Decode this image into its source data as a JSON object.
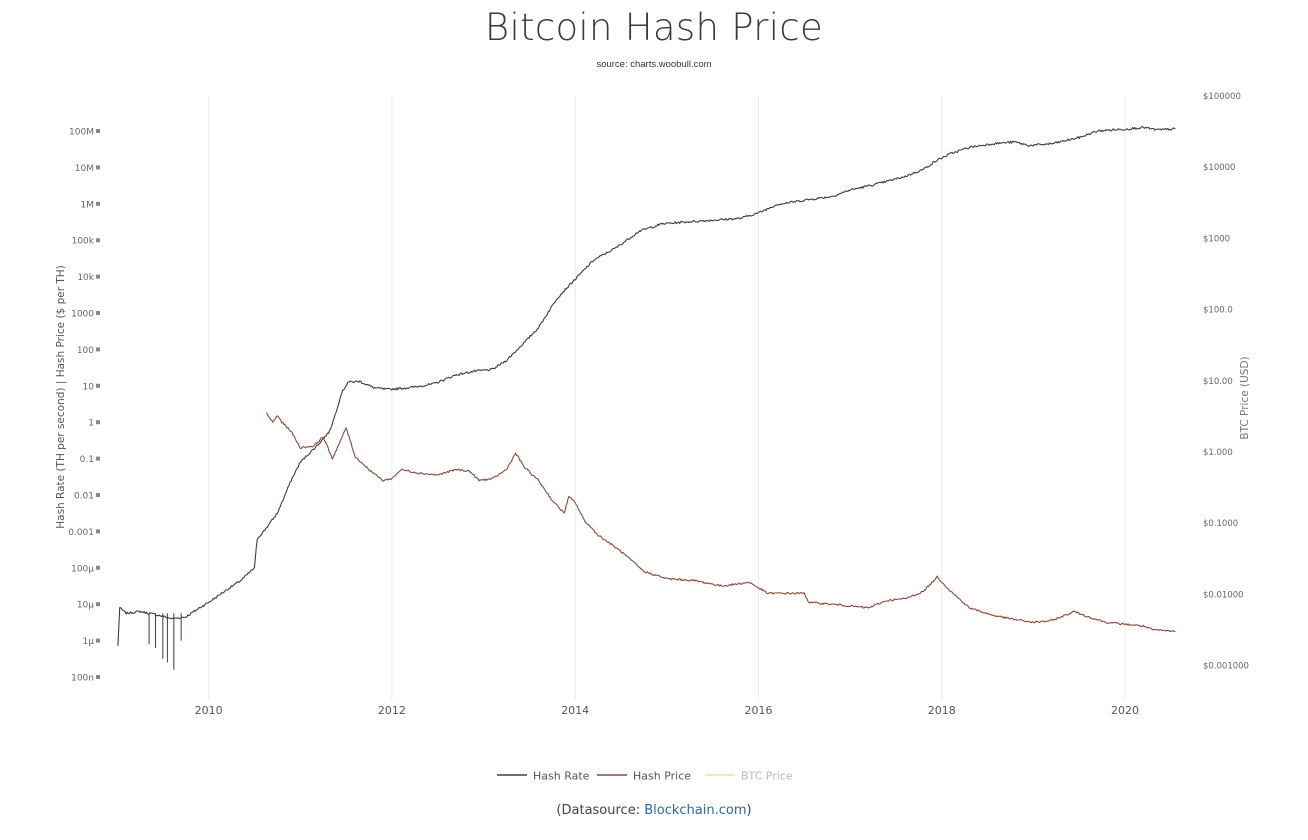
{
  "title": "Bitcoin Hash Price",
  "subtitle": "source: charts.woobull.com",
  "footer": {
    "prefix": "(Datasource: ",
    "link_text": "Blockchain.com",
    "suffix": ")"
  },
  "chart_data": {
    "type": "line",
    "x_axis": {
      "range": [
        2009.0,
        2020.6
      ],
      "ticks": [
        2010,
        2012,
        2014,
        2016,
        2018,
        2020
      ],
      "grid": true
    },
    "y_axis_left": {
      "label": "Hash Rate (TH per second) | Hash Price ($ per TH)",
      "scale": "log",
      "range_log10": [
        -7.5,
        8.9
      ],
      "ticks": [
        {
          "value_log10": 8,
          "label": "100M"
        },
        {
          "value_log10": 7,
          "label": "10M"
        },
        {
          "value_log10": 6,
          "label": "1M"
        },
        {
          "value_log10": 5,
          "label": "100k"
        },
        {
          "value_log10": 4,
          "label": "10k"
        },
        {
          "value_log10": 3,
          "label": "1000"
        },
        {
          "value_log10": 2,
          "label": "100"
        },
        {
          "value_log10": 1,
          "label": "10"
        },
        {
          "value_log10": 0,
          "label": "1"
        },
        {
          "value_log10": -1,
          "label": "0.1"
        },
        {
          "value_log10": -2,
          "label": "0.01"
        },
        {
          "value_log10": -3,
          "label": "0.001"
        },
        {
          "value_log10": -4,
          "label": "100μ"
        },
        {
          "value_log10": -5,
          "label": "10μ"
        },
        {
          "value_log10": -6,
          "label": "1μ"
        },
        {
          "value_log10": -7,
          "label": "100n"
        }
      ]
    },
    "y_axis_right": {
      "label": "BTC Price (USD)",
      "scale": "log",
      "range_log10": [
        -3.3,
        5.3
      ],
      "ticks": [
        {
          "value_log10": 5,
          "label": "$100000"
        },
        {
          "value_log10": 4,
          "label": "$10000"
        },
        {
          "value_log10": 3,
          "label": "$1000"
        },
        {
          "value_log10": 2,
          "label": "$100.0"
        },
        {
          "value_log10": 1,
          "label": "$10.00"
        },
        {
          "value_log10": 0,
          "label": "$1.000"
        },
        {
          "value_log10": -1,
          "label": "$0.1000"
        },
        {
          "value_log10": -2,
          "label": "$0.01000"
        },
        {
          "value_log10": -3,
          "label": "$0.001000"
        }
      ]
    },
    "legend": {
      "position": "bottom-center"
    },
    "series": [
      {
        "name": "Hash Rate",
        "color": "#4a3838",
        "axis": "left",
        "visible": true,
        "points": [
          [
            2009.01,
            -6.15
          ],
          [
            2009.03,
            -5.1
          ],
          [
            2009.1,
            -5.25
          ],
          [
            2009.25,
            -5.2
          ],
          [
            2009.45,
            -5.3
          ],
          [
            2009.6,
            -5.4
          ],
          [
            2009.75,
            -5.35
          ],
          [
            2009.9,
            -5.1
          ],
          [
            2010.0,
            -4.95
          ],
          [
            2010.2,
            -4.6
          ],
          [
            2010.35,
            -4.35
          ],
          [
            2010.5,
            -4.0
          ],
          [
            2010.53,
            -3.2
          ],
          [
            2010.6,
            -3.0
          ],
          [
            2010.75,
            -2.5
          ],
          [
            2010.9,
            -1.6
          ],
          [
            2011.0,
            -1.1
          ],
          [
            2011.2,
            -0.6
          ],
          [
            2011.32,
            -0.25
          ],
          [
            2011.38,
            0.2
          ],
          [
            2011.45,
            0.8
          ],
          [
            2011.52,
            1.1
          ],
          [
            2011.65,
            1.12
          ],
          [
            2011.8,
            0.95
          ],
          [
            2011.95,
            0.9
          ],
          [
            2012.2,
            0.95
          ],
          [
            2012.45,
            1.05
          ],
          [
            2012.7,
            1.3
          ],
          [
            2012.9,
            1.4
          ],
          [
            2013.1,
            1.45
          ],
          [
            2013.25,
            1.7
          ],
          [
            2013.45,
            2.2
          ],
          [
            2013.6,
            2.6
          ],
          [
            2013.8,
            3.4
          ],
          [
            2013.95,
            3.8
          ],
          [
            2014.2,
            4.45
          ],
          [
            2014.45,
            4.8
          ],
          [
            2014.7,
            5.25
          ],
          [
            2014.95,
            5.45
          ],
          [
            2015.2,
            5.5
          ],
          [
            2015.5,
            5.55
          ],
          [
            2015.8,
            5.6
          ],
          [
            2016.0,
            5.75
          ],
          [
            2016.2,
            5.98
          ],
          [
            2016.5,
            6.1
          ],
          [
            2016.8,
            6.2
          ],
          [
            2017.0,
            6.38
          ],
          [
            2017.3,
            6.55
          ],
          [
            2017.6,
            6.75
          ],
          [
            2017.8,
            6.95
          ],
          [
            2017.95,
            7.2
          ],
          [
            2018.1,
            7.38
          ],
          [
            2018.3,
            7.55
          ],
          [
            2018.55,
            7.65
          ],
          [
            2018.8,
            7.7
          ],
          [
            2018.95,
            7.6
          ],
          [
            2019.2,
            7.65
          ],
          [
            2019.5,
            7.82
          ],
          [
            2019.7,
            8.0
          ],
          [
            2019.85,
            8.03
          ],
          [
            2020.0,
            8.05
          ],
          [
            2020.2,
            8.1
          ],
          [
            2020.35,
            8.03
          ],
          [
            2020.55,
            8.06
          ]
        ],
        "dips": [
          [
            2009.5,
            -6.5
          ],
          [
            2009.42,
            -6.2
          ],
          [
            2009.62,
            -6.8
          ],
          [
            2009.35,
            -6.1
          ],
          [
            2009.7,
            -6.0
          ],
          [
            2009.55,
            -6.6
          ]
        ]
      },
      {
        "name": "Hash Price",
        "color": "#8b4a3a",
        "axis": "left",
        "visible": true,
        "points": [
          [
            2010.63,
            0.25
          ],
          [
            2010.7,
            0.0
          ],
          [
            2010.75,
            0.18
          ],
          [
            2010.8,
            0.0
          ],
          [
            2010.9,
            -0.25
          ],
          [
            2011.0,
            -0.7
          ],
          [
            2011.15,
            -0.65
          ],
          [
            2011.25,
            -0.4
          ],
          [
            2011.35,
            -1.0
          ],
          [
            2011.45,
            -0.45
          ],
          [
            2011.5,
            -0.15
          ],
          [
            2011.6,
            -0.95
          ],
          [
            2011.75,
            -1.3
          ],
          [
            2011.9,
            -1.6
          ],
          [
            2012.0,
            -1.55
          ],
          [
            2012.1,
            -1.3
          ],
          [
            2012.3,
            -1.4
          ],
          [
            2012.5,
            -1.45
          ],
          [
            2012.7,
            -1.3
          ],
          [
            2012.85,
            -1.35
          ],
          [
            2012.95,
            -1.6
          ],
          [
            2013.1,
            -1.55
          ],
          [
            2013.25,
            -1.3
          ],
          [
            2013.35,
            -0.85
          ],
          [
            2013.45,
            -1.25
          ],
          [
            2013.6,
            -1.6
          ],
          [
            2013.75,
            -2.15
          ],
          [
            2013.88,
            -2.5
          ],
          [
            2013.93,
            -2.05
          ],
          [
            2014.0,
            -2.2
          ],
          [
            2014.1,
            -2.7
          ],
          [
            2014.25,
            -3.1
          ],
          [
            2014.5,
            -3.55
          ],
          [
            2014.75,
            -4.1
          ],
          [
            2015.0,
            -4.3
          ],
          [
            2015.3,
            -4.35
          ],
          [
            2015.6,
            -4.5
          ],
          [
            2015.9,
            -4.4
          ],
          [
            2016.1,
            -4.7
          ],
          [
            2016.5,
            -4.7
          ],
          [
            2016.55,
            -4.95
          ],
          [
            2016.8,
            -5.0
          ],
          [
            2017.0,
            -5.05
          ],
          [
            2017.2,
            -5.1
          ],
          [
            2017.4,
            -4.9
          ],
          [
            2017.6,
            -4.85
          ],
          [
            2017.8,
            -4.65
          ],
          [
            2017.95,
            -4.25
          ],
          [
            2018.1,
            -4.65
          ],
          [
            2018.3,
            -5.1
          ],
          [
            2018.55,
            -5.3
          ],
          [
            2018.75,
            -5.4
          ],
          [
            2019.0,
            -5.5
          ],
          [
            2019.2,
            -5.45
          ],
          [
            2019.45,
            -5.2
          ],
          [
            2019.6,
            -5.35
          ],
          [
            2019.8,
            -5.5
          ],
          [
            2020.0,
            -5.55
          ],
          [
            2020.2,
            -5.6
          ],
          [
            2020.3,
            -5.7
          ],
          [
            2020.55,
            -5.75
          ]
        ]
      },
      {
        "name": "BTC Price",
        "color": "#f2d9b0",
        "axis": "right",
        "visible": false,
        "points": []
      }
    ]
  }
}
